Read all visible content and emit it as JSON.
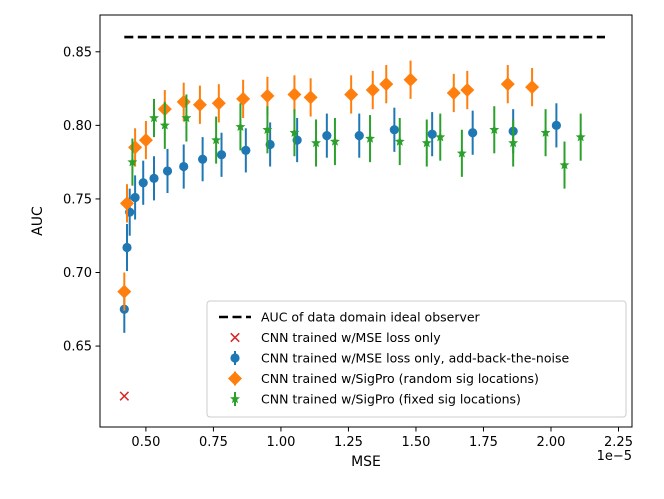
{
  "chart_data": {
    "type": "scatter",
    "title": "",
    "xlabel": "MSE",
    "ylabel": "AUC",
    "x_scale_label": "1e−5",
    "xlim": [
      0.33,
      2.3
    ],
    "ylim": [
      0.595,
      0.875
    ],
    "xticks": [
      "0.50",
      "0.75",
      "1.00",
      "1.25",
      "1.50",
      "1.75",
      "2.00",
      "2.25"
    ],
    "xtick_values": [
      0.5,
      0.75,
      1.0,
      1.25,
      1.5,
      1.75,
      2.0,
      2.25
    ],
    "yticks": [
      "0.65",
      "0.70",
      "0.75",
      "0.80",
      "0.85"
    ],
    "ytick_values": [
      0.65,
      0.7,
      0.75,
      0.8,
      0.85
    ],
    "legend_position": "lower-right",
    "ideal_observer": {
      "name": "AUC of data domain ideal observer",
      "value": 0.86,
      "x_range": [
        0.42,
        2.2
      ],
      "color": "#000000"
    },
    "series": [
      {
        "name": "CNN trained w/MSE loss only",
        "marker": "x",
        "color": "#d62728",
        "points": [
          [
            0.42,
            0.616,
            0
          ]
        ]
      },
      {
        "name": "CNN trained w/MSE loss only, add-back-the-noise",
        "marker": "circle",
        "color": "#1f77b4",
        "points": [
          [
            0.42,
            0.675,
            0.016
          ],
          [
            0.43,
            0.717,
            0.016
          ],
          [
            0.44,
            0.741,
            0.016
          ],
          [
            0.46,
            0.751,
            0.015
          ],
          [
            0.49,
            0.761,
            0.015
          ],
          [
            0.53,
            0.764,
            0.015
          ],
          [
            0.58,
            0.769,
            0.015
          ],
          [
            0.64,
            0.772,
            0.015
          ],
          [
            0.71,
            0.777,
            0.015
          ],
          [
            0.78,
            0.78,
            0.015
          ],
          [
            0.87,
            0.783,
            0.015
          ],
          [
            0.96,
            0.787,
            0.015
          ],
          [
            1.06,
            0.79,
            0.015
          ],
          [
            1.17,
            0.793,
            0.015
          ],
          [
            1.29,
            0.793,
            0.015
          ],
          [
            1.42,
            0.797,
            0.015
          ],
          [
            1.56,
            0.794,
            0.015
          ],
          [
            1.71,
            0.795,
            0.015
          ],
          [
            1.86,
            0.796,
            0.015
          ],
          [
            2.02,
            0.8,
            0.015
          ]
        ]
      },
      {
        "name": "CNN trained w/SigPro (random sig locations)",
        "marker": "diamond",
        "color": "#ff7f0e",
        "points": [
          [
            0.42,
            0.687,
            0.013
          ],
          [
            0.43,
            0.747,
            0.013
          ],
          [
            0.46,
            0.785,
            0.013
          ],
          [
            0.5,
            0.79,
            0.013
          ],
          [
            0.57,
            0.811,
            0.013
          ],
          [
            0.64,
            0.816,
            0.013
          ],
          [
            0.7,
            0.814,
            0.013
          ],
          [
            0.77,
            0.815,
            0.013
          ],
          [
            0.86,
            0.818,
            0.013
          ],
          [
            0.95,
            0.82,
            0.013
          ],
          [
            1.05,
            0.821,
            0.013
          ],
          [
            1.11,
            0.819,
            0.013
          ],
          [
            1.26,
            0.821,
            0.013
          ],
          [
            1.34,
            0.824,
            0.013
          ],
          [
            1.39,
            0.828,
            0.013
          ],
          [
            1.48,
            0.831,
            0.013
          ],
          [
            1.64,
            0.822,
            0.013
          ],
          [
            1.69,
            0.824,
            0.013
          ],
          [
            1.84,
            0.828,
            0.013
          ],
          [
            1.93,
            0.826,
            0.013
          ]
        ]
      },
      {
        "name": "CNN trained w/SigPro (fixed sig locations)",
        "marker": "star",
        "color": "#2ca02c",
        "points": [
          [
            0.45,
            0.775,
            0.016
          ],
          [
            0.53,
            0.805,
            0.013
          ],
          [
            0.57,
            0.8,
            0.016
          ],
          [
            0.65,
            0.805,
            0.016
          ],
          [
            0.76,
            0.79,
            0.016
          ],
          [
            0.85,
            0.799,
            0.016
          ],
          [
            0.95,
            0.797,
            0.016
          ],
          [
            1.05,
            0.795,
            0.016
          ],
          [
            1.13,
            0.788,
            0.016
          ],
          [
            1.2,
            0.789,
            0.016
          ],
          [
            1.33,
            0.791,
            0.016
          ],
          [
            1.44,
            0.789,
            0.016
          ],
          [
            1.54,
            0.788,
            0.016
          ],
          [
            1.59,
            0.792,
            0.016
          ],
          [
            1.67,
            0.781,
            0.016
          ],
          [
            1.79,
            0.797,
            0.016
          ],
          [
            1.86,
            0.788,
            0.016
          ],
          [
            1.98,
            0.795,
            0.016
          ],
          [
            2.05,
            0.773,
            0.016
          ],
          [
            2.11,
            0.792,
            0.016
          ]
        ]
      }
    ]
  }
}
